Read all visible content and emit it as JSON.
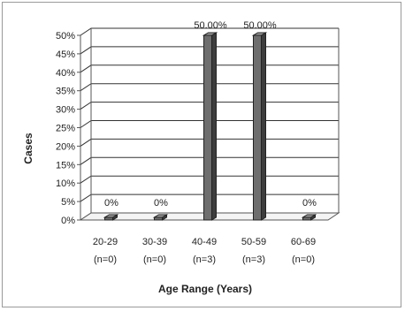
{
  "chart_data": {
    "type": "bar",
    "style": "3d-column",
    "categories": [
      "20-29",
      "30-39",
      "40-49",
      "50-59",
      "60-69"
    ],
    "category_counts": [
      "(n=0)",
      "(n=0)",
      "(n=3)",
      "(n=3)",
      "(n=0)"
    ],
    "values": [
      0,
      0,
      50,
      50,
      0
    ],
    "data_labels": [
      "0%",
      "0%",
      "50.00%",
      "50.00%",
      "0%"
    ],
    "title": "",
    "xlabel": "Age Range (Years)",
    "ylabel": "Cases",
    "ylim": [
      0,
      50
    ],
    "yticks": [
      "0%",
      "5%",
      "10%",
      "15%",
      "20%",
      "25%",
      "30%",
      "35%",
      "40%",
      "45%",
      "50%"
    ],
    "grid": true,
    "legend": "none",
    "bar_color": "#6b6b6b"
  }
}
